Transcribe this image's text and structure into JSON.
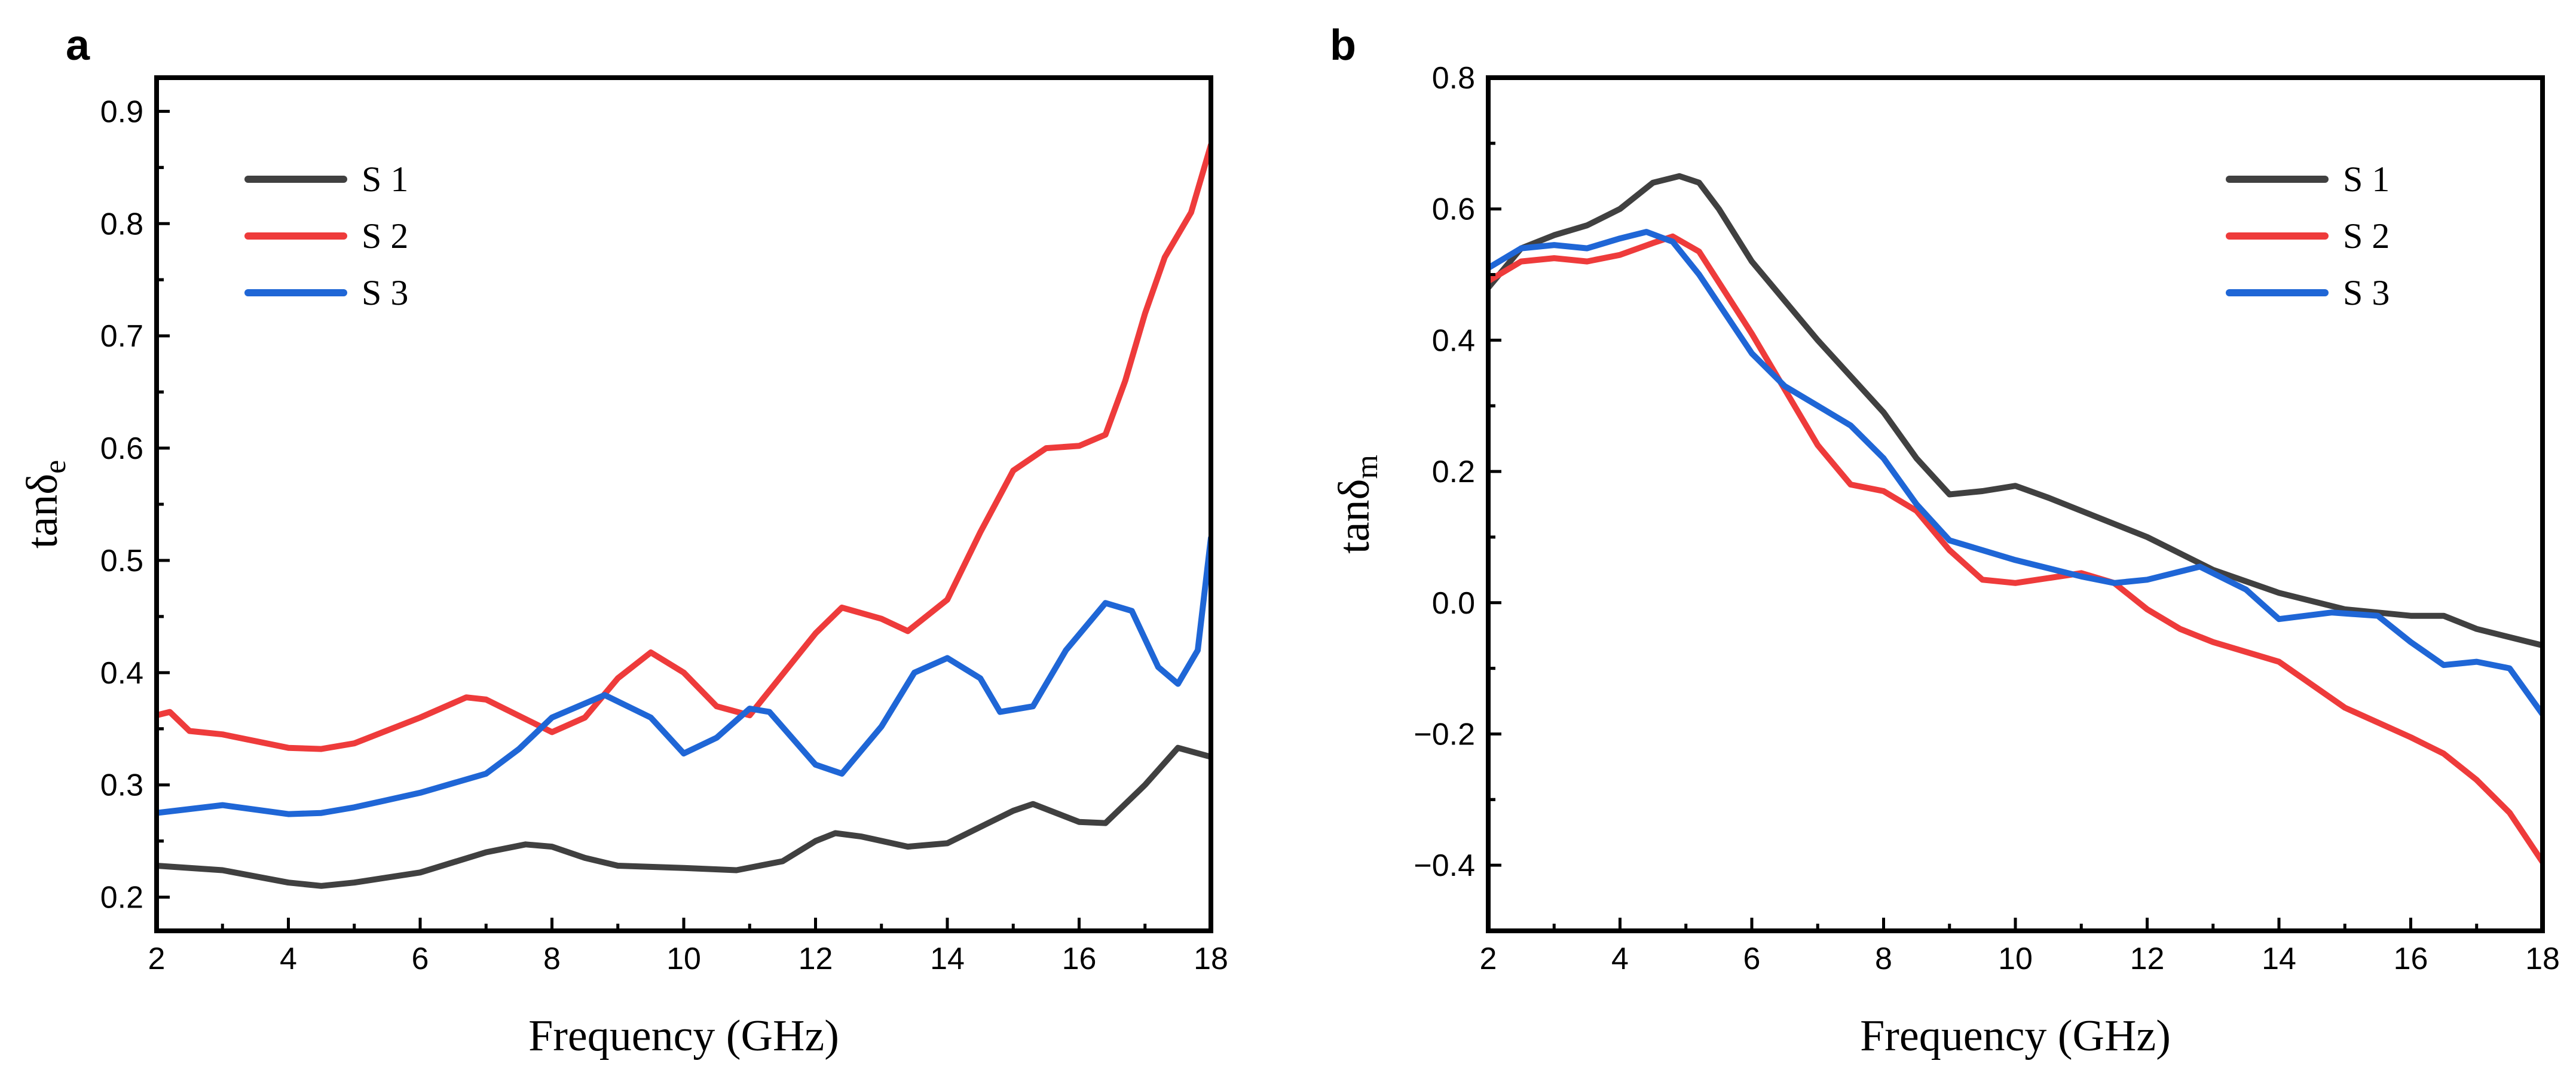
{
  "colors": {
    "S1": "#404040",
    "S2": "#ee3b3b",
    "S3": "#1f66d6"
  },
  "chart_data": [
    {
      "panel": "a",
      "type": "line",
      "title": "",
      "xlabel": "Frequency (GHz)",
      "ylabel_main": "tanδ",
      "ylabel_sub": "e",
      "xlim": [
        2,
        18
      ],
      "ylim": [
        0.17,
        0.93
      ],
      "xticks": [
        2,
        4,
        6,
        8,
        10,
        12,
        14,
        16,
        18
      ],
      "xtick_labels": [
        "2",
        "4",
        "6",
        "8",
        "10",
        "12",
        "14",
        "16",
        "18"
      ],
      "yticks": [
        0.2,
        0.3,
        0.4,
        0.5,
        0.6,
        0.7,
        0.8,
        0.9
      ],
      "ytick_labels": [
        "0.2",
        "0.3",
        "0.4",
        "0.5",
        "0.6",
        "0.7",
        "0.8",
        "0.9"
      ],
      "legend_position": "top-left",
      "legend": [
        "S 1",
        "S 2",
        "S 3"
      ],
      "series": [
        {
          "name": "S 1",
          "x": [
            2,
            3,
            4,
            4.5,
            5,
            6,
            7,
            7.6,
            8,
            8.5,
            9,
            10,
            10.8,
            11.5,
            12,
            12.3,
            12.7,
            13.4,
            14,
            15,
            15.3,
            16,
            16.4,
            17,
            17.5,
            18
          ],
          "values": [
            0.228,
            0.224,
            0.213,
            0.21,
            0.213,
            0.222,
            0.24,
            0.247,
            0.245,
            0.235,
            0.228,
            0.226,
            0.224,
            0.232,
            0.25,
            0.257,
            0.254,
            0.245,
            0.248,
            0.277,
            0.283,
            0.267,
            0.266,
            0.3,
            0.333,
            0.325
          ]
        },
        {
          "name": "S 2",
          "x": [
            2,
            2.2,
            2.5,
            3,
            4,
            4.5,
            5,
            6,
            6.7,
            7,
            8,
            8.5,
            9,
            9.5,
            10,
            10.5,
            11,
            12,
            12.4,
            13,
            13.4,
            14,
            14.5,
            15,
            15.5,
            16,
            16.4,
            16.7,
            17,
            17.3,
            17.7,
            18
          ],
          "values": [
            0.362,
            0.365,
            0.348,
            0.345,
            0.333,
            0.332,
            0.337,
            0.36,
            0.378,
            0.376,
            0.347,
            0.36,
            0.395,
            0.418,
            0.4,
            0.37,
            0.362,
            0.435,
            0.458,
            0.448,
            0.437,
            0.465,
            0.525,
            0.58,
            0.6,
            0.602,
            0.612,
            0.66,
            0.72,
            0.77,
            0.81,
            0.87
          ]
        },
        {
          "name": "S 3",
          "x": [
            2,
            3,
            4,
            4.5,
            5,
            6,
            7,
            7.5,
            8,
            8.8,
            9.5,
            10,
            10.5,
            11,
            11.3,
            12,
            12.4,
            13,
            13.5,
            14,
            14.5,
            14.8,
            15.3,
            15.8,
            16.4,
            16.8,
            17.2,
            17.5,
            17.8,
            18
          ],
          "values": [
            0.275,
            0.282,
            0.274,
            0.275,
            0.28,
            0.293,
            0.31,
            0.332,
            0.36,
            0.38,
            0.36,
            0.328,
            0.342,
            0.368,
            0.365,
            0.318,
            0.31,
            0.352,
            0.4,
            0.413,
            0.395,
            0.365,
            0.37,
            0.42,
            0.462,
            0.455,
            0.405,
            0.39,
            0.42,
            0.52
          ]
        }
      ]
    },
    {
      "panel": "b",
      "type": "line",
      "title": "",
      "xlabel": "Frequency (GHz)",
      "ylabel_main": "tanδ",
      "ylabel_sub": "m",
      "xlim": [
        2,
        18
      ],
      "ylim": [
        -0.5,
        0.8
      ],
      "xticks": [
        2,
        4,
        6,
        8,
        10,
        12,
        14,
        16,
        18
      ],
      "xtick_labels": [
        "2",
        "4",
        "6",
        "8",
        "10",
        "12",
        "14",
        "16",
        "18"
      ],
      "yticks": [
        -0.4,
        -0.2,
        0.0,
        0.2,
        0.4,
        0.6,
        0.8
      ],
      "ytick_labels": [
        "−0.4",
        "−0.2",
        "0.0",
        "0.2",
        "0.4",
        "0.6",
        "0.8"
      ],
      "legend_position": "top-right",
      "legend": [
        "S 1",
        "S 2",
        "S 3"
      ],
      "series": [
        {
          "name": "S 1",
          "x": [
            2,
            2.5,
            3,
            3.5,
            4,
            4.5,
            4.9,
            5.2,
            5.5,
            6,
            7,
            8,
            8.5,
            9,
            9.5,
            10,
            10.5,
            11,
            12,
            13,
            14,
            15,
            16,
            16.5,
            17,
            18
          ],
          "values": [
            0.48,
            0.54,
            0.56,
            0.575,
            0.6,
            0.64,
            0.65,
            0.64,
            0.6,
            0.52,
            0.4,
            0.29,
            0.22,
            0.165,
            0.17,
            0.178,
            0.16,
            0.14,
            0.1,
            0.05,
            0.015,
            -0.01,
            -0.02,
            -0.02,
            -0.04,
            -0.065
          ]
        },
        {
          "name": "S 2",
          "x": [
            2,
            2.5,
            3,
            3.5,
            4,
            4.5,
            4.8,
            5.2,
            6,
            7,
            7.5,
            8,
            8.5,
            9,
            9.5,
            10,
            11,
            11.5,
            12,
            12.5,
            13,
            14,
            15,
            16,
            16.5,
            17,
            17.5,
            18
          ],
          "values": [
            0.49,
            0.52,
            0.525,
            0.52,
            0.53,
            0.548,
            0.558,
            0.535,
            0.41,
            0.24,
            0.18,
            0.17,
            0.14,
            0.08,
            0.035,
            0.03,
            0.045,
            0.03,
            -0.01,
            -0.04,
            -0.06,
            -0.09,
            -0.16,
            -0.205,
            -0.23,
            -0.27,
            -0.32,
            -0.395
          ]
        },
        {
          "name": "S 3",
          "x": [
            2,
            2.5,
            3,
            3.5,
            4,
            4.4,
            4.8,
            5.2,
            6,
            6.5,
            7,
            7.5,
            8,
            8.5,
            9,
            10,
            11,
            11.5,
            12,
            12.8,
            13.5,
            14,
            14.8,
            15.5,
            16,
            16.5,
            17,
            17.5,
            18
          ],
          "values": [
            0.51,
            0.54,
            0.545,
            0.54,
            0.555,
            0.565,
            0.55,
            0.5,
            0.38,
            0.33,
            0.3,
            0.27,
            0.22,
            0.15,
            0.095,
            0.065,
            0.04,
            0.03,
            0.035,
            0.055,
            0.02,
            -0.025,
            -0.015,
            -0.02,
            -0.06,
            -0.095,
            -0.09,
            -0.1,
            -0.17
          ]
        }
      ]
    }
  ]
}
